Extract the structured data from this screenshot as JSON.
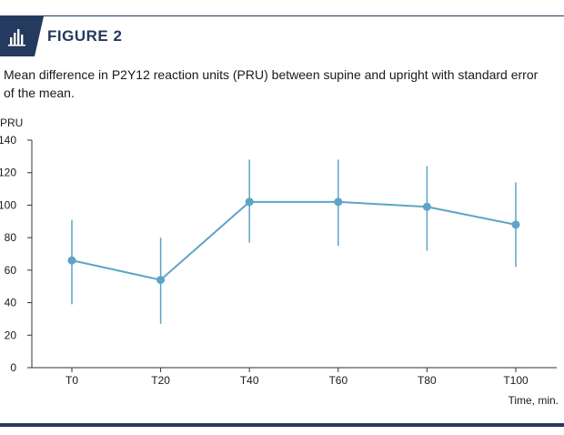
{
  "header": {
    "figure_label": "FIGURE 2"
  },
  "caption": "Mean difference in P2Y12 reaction units (PRU) between supine and upright with standard error of the mean.",
  "colors": {
    "accent": "#243a5e",
    "series": "#5ea3c8",
    "axis": "#333333"
  },
  "icons": {
    "figure_icon": "bar-chart-icon"
  },
  "chart_data": {
    "type": "line",
    "title": "",
    "ylabel": "PRU",
    "xlabel": "Time, min.",
    "ylim": [
      0,
      140
    ],
    "yticks": [
      0,
      20,
      40,
      60,
      80,
      100,
      120,
      140
    ],
    "categories": [
      "T0",
      "T20",
      "T40",
      "T60",
      "T80",
      "T100"
    ],
    "series": [
      {
        "values": [
          66,
          54,
          102,
          102,
          99,
          88
        ],
        "error_low": [
          39,
          27,
          77,
          75,
          72,
          62
        ],
        "error_high": [
          91,
          80,
          128,
          128,
          124,
          114
        ]
      }
    ],
    "grid": false,
    "legend": "none"
  }
}
